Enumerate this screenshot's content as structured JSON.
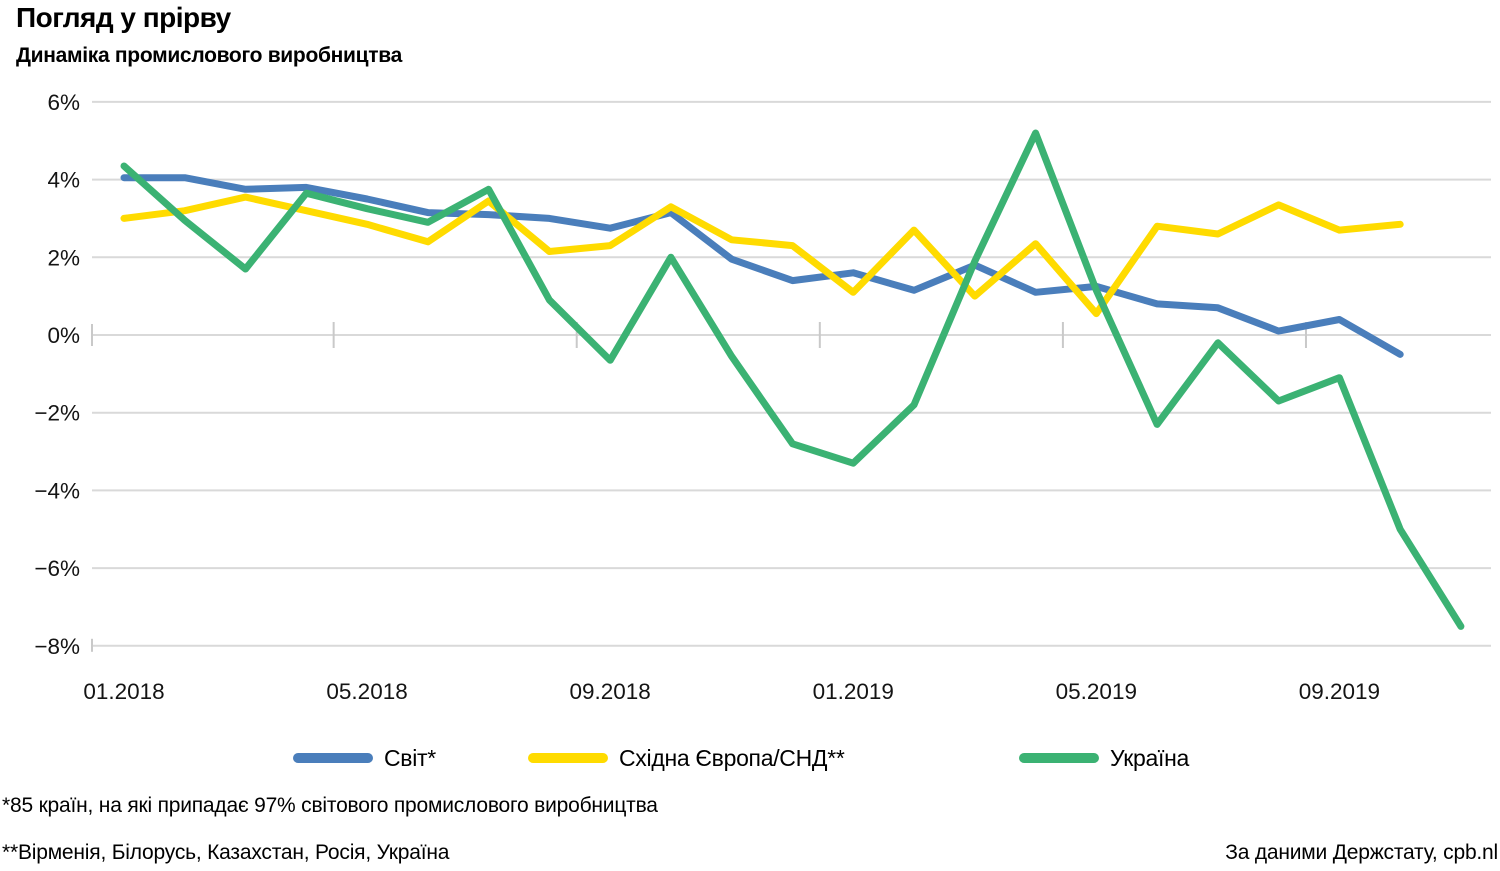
{
  "header": {
    "title": "Погляд у прірву",
    "subtitle": "Динаміка промислового виробництва"
  },
  "chart_data": {
    "type": "line",
    "title": "Погляд у прірву",
    "subtitle": "Динаміка промислового виробництва",
    "grid": "horizontal",
    "grid_color": "#D9D9D9",
    "tick_color": "#C9C9C9",
    "axis_text_color": "#141414",
    "ylim": [
      -8,
      6
    ],
    "y_unit": "%",
    "y_tick_values": [
      6,
      4,
      2,
      0,
      -2,
      -4,
      -6,
      -8
    ],
    "y_tick_labels": [
      "6%",
      "4%",
      "2%",
      "0%",
      "−2%",
      "−4%",
      "−6%",
      "−8%"
    ],
    "x_months": [
      "01.2018",
      "02.2018",
      "03.2018",
      "04.2018",
      "05.2018",
      "06.2018",
      "07.2018",
      "08.2018",
      "09.2018",
      "10.2018",
      "11.2018",
      "12.2018",
      "01.2019",
      "02.2019",
      "03.2019",
      "04.2019",
      "05.2019",
      "06.2019",
      "07.2019",
      "08.2019",
      "09.2019",
      "10.2019",
      "11.2019"
    ],
    "x_tick_labels": [
      "01.2018",
      "05.2018",
      "09.2018",
      "01.2019",
      "05.2019",
      "09.2019"
    ],
    "x_tick_month_index": [
      0,
      4,
      8,
      12,
      16,
      20
    ],
    "x_group_tick_months": [
      3.45,
      7.45,
      11.45,
      15.45,
      19.45
    ],
    "legend_position": "bottom",
    "series": [
      {
        "id": "svit",
        "name": "Світ*",
        "color": "#4A7EBB",
        "values": [
          4.05,
          4.05,
          3.75,
          3.8,
          3.5,
          3.15,
          3.1,
          3.0,
          2.75,
          3.15,
          1.95,
          1.4,
          1.6,
          1.15,
          1.8,
          1.1,
          1.25,
          0.8,
          0.7,
          0.1,
          0.4,
          -0.5
        ]
      },
      {
        "id": "eastern-europe-cis",
        "name": "Східна Європа/СНД**",
        "color": "#FFDB00",
        "values": [
          3.0,
          3.2,
          3.55,
          3.2,
          2.85,
          2.4,
          3.45,
          2.15,
          2.3,
          3.3,
          2.45,
          2.3,
          1.1,
          2.7,
          1.0,
          2.35,
          0.55,
          2.8,
          2.6,
          3.35,
          2.7,
          2.85
        ]
      },
      {
        "id": "ukraina",
        "name": "Україна",
        "color": "#3BB273",
        "values": [
          4.35,
          2.95,
          1.7,
          3.65,
          3.25,
          2.9,
          3.75,
          0.9,
          -0.65,
          2.0,
          -0.55,
          -2.8,
          -3.3,
          -1.8,
          1.9,
          5.2,
          1.15,
          -2.3,
          -0.2,
          -1.7,
          -1.1,
          -5.0,
          -7.5
        ]
      }
    ]
  },
  "footnotes": {
    "note1": "*85 країн, на які припадає 97% світового промислового виробництва",
    "note2": "**Вірменія, Білорусь, Казахстан, Росія, Україна",
    "source": "За даними Держстату, cpb.nl"
  }
}
